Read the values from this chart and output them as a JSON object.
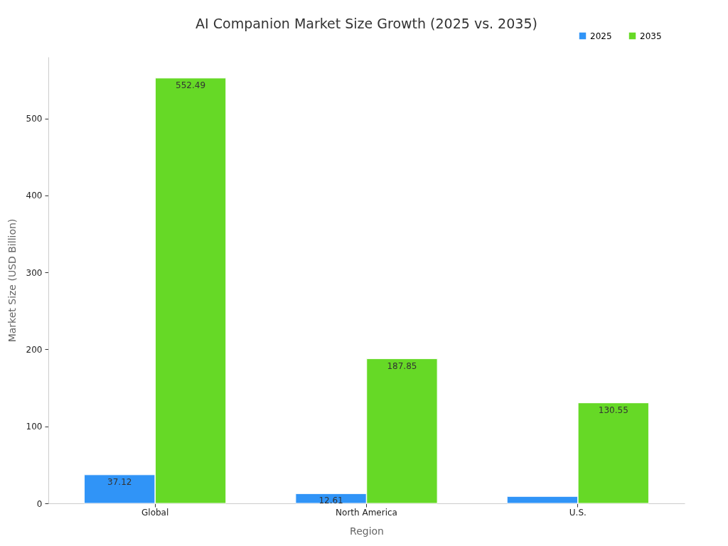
{
  "chart_data": {
    "type": "bar",
    "title": "AI Companion Market Size Growth (2025 vs. 2035)",
    "xlabel": "Region",
    "ylabel": "Market Size (USD Billion)",
    "categories": [
      "Global",
      "North America",
      "U.S."
    ],
    "series": [
      {
        "name": "2025",
        "color": "#3094f7",
        "values": [
          37.12,
          12.61,
          9
        ],
        "value_labels": [
          "37.12",
          "12.61",
          null
        ]
      },
      {
        "name": "2035",
        "color": "#66d926",
        "values": [
          552.49,
          187.85,
          130.55
        ],
        "value_labels": [
          "552.49",
          "187.85",
          "130.55"
        ]
      }
    ],
    "ylim": [
      0,
      580
    ],
    "yticks": [
      0,
      100,
      200,
      300,
      400,
      500
    ],
    "grid": false,
    "legend": "top right"
  }
}
